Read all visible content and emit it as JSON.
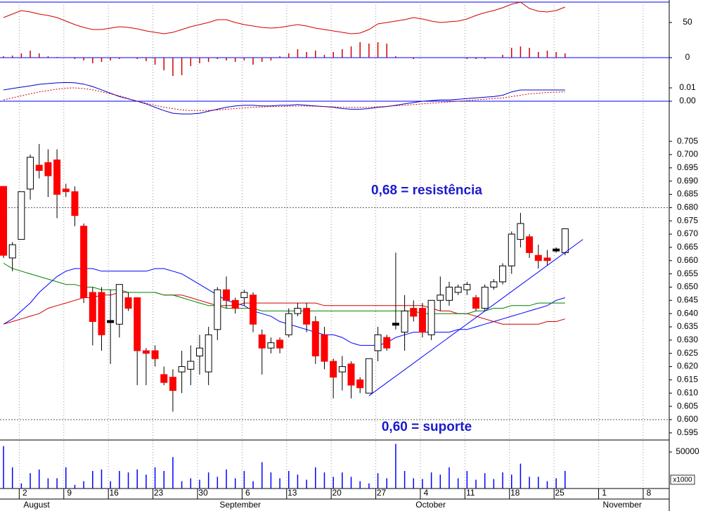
{
  "chart_data": [
    {
      "type": "line",
      "ylim": [
        -27,
        79
      ],
      "yticks": [
        0,
        50
      ],
      "zero_line": "#0000ff",
      "series": [
        {
          "color": "#d00000",
          "values": [
            57,
            62,
            67,
            65,
            62,
            60,
            57,
            52,
            47,
            43,
            40,
            40,
            42,
            44,
            43,
            41,
            38,
            36,
            34,
            36,
            40,
            44,
            47,
            50,
            54,
            54,
            50,
            47,
            45,
            43,
            42,
            43,
            45,
            47,
            45,
            42,
            40,
            38,
            36,
            34,
            35,
            40,
            48,
            50,
            52,
            54,
            57,
            55,
            52,
            50,
            51,
            52,
            55,
            60,
            64,
            67,
            71,
            76,
            79,
            70,
            66,
            65,
            67,
            72
          ]
        }
      ],
      "histogram": {
        "color": "#d00000",
        "values": [
          2,
          3,
          6,
          10,
          6,
          2,
          1,
          0,
          -2,
          -4,
          -8,
          -6,
          -4,
          -2,
          0,
          -2,
          -5,
          -10,
          -18,
          -26,
          -25,
          -12,
          -8,
          -6,
          -2,
          -4,
          -6,
          -4,
          -10,
          -6,
          -4,
          2,
          6,
          12,
          8,
          10,
          4,
          8,
          12,
          16,
          22,
          20,
          22,
          20,
          2,
          0,
          -2,
          0,
          0,
          0,
          0,
          0,
          -2,
          -2,
          -2,
          0,
          4,
          14,
          16,
          14,
          8,
          10,
          8,
          6
        ]
      }
    },
    {
      "type": "line",
      "ylim": [
        -0.0084,
        0.0184
      ],
      "yticks": [
        0.01,
        {
          "value": 0,
          "label": "0.00"
        }
      ],
      "zero_line": "#0000ff",
      "series": [
        {
          "color": "#0000cc",
          "values": [
            0.0084,
            0.0095,
            0.0105,
            0.0115,
            0.0126,
            0.0132,
            0.0137,
            0.014,
            0.0138,
            0.0128,
            0.011,
            0.0085,
            0.006,
            0.0035,
            0.0018,
            0,
            -0.002,
            -0.0045,
            -0.007,
            -0.009,
            -0.0095,
            -0.0095,
            -0.009,
            -0.0075,
            -0.006,
            -0.0045,
            -0.0035,
            -0.003,
            -0.003,
            -0.0035,
            -0.0035,
            -0.003,
            -0.003,
            -0.0025,
            -0.003,
            -0.0035,
            -0.004,
            -0.0045,
            -0.0055,
            -0.006,
            -0.006,
            -0.0055,
            -0.0045,
            -0.004,
            -0.003,
            -0.002,
            -0.001,
            0,
            0.0005,
            0.001,
            0.001,
            0.0015,
            0.002,
            0.0025,
            0.003,
            0.0035,
            0.0045,
            0.007,
            0.0084,
            0.0084,
            0.0084,
            0.0084,
            0.0084,
            0.0084
          ]
        },
        {
          "color": "#d00000",
          "line_style": "dotted",
          "values": [
            0.001,
            0.0025,
            0.004,
            0.0055,
            0.007,
            0.008,
            0.009,
            0.0098,
            0.01,
            0.0095,
            0.0085,
            0.007,
            0.0055,
            0.004,
            0.002,
            0,
            -0.0015,
            -0.003,
            -0.0045,
            -0.0055,
            -0.0065,
            -0.007,
            -0.007,
            -0.0068,
            -0.0065,
            -0.006,
            -0.0055,
            -0.005,
            -0.0045,
            -0.0043,
            -0.004,
            -0.004,
            -0.0038,
            -0.0036,
            -0.0036,
            -0.0038,
            -0.004,
            -0.0042,
            -0.0045,
            -0.0046,
            -0.0046,
            -0.0045,
            -0.0042,
            -0.0038,
            -0.0034,
            -0.003,
            -0.0025,
            -0.002,
            -0.0015,
            -0.001,
            -0.0005,
            0,
            0.0005,
            0.001,
            0.0015,
            0.002,
            0.0025,
            0.0035,
            0.0045,
            0.0055,
            0.006,
            0.0065,
            0.0068,
            0.007
          ]
        }
      ]
    },
    {
      "type": "candlestick",
      "ylim": [
        0.5923,
        0.7159
      ],
      "yticks": [
        0.595,
        {
          "value": 0.6,
          "label": "0.600"
        },
        0.605,
        {
          "value": 0.61,
          "label": "0.610"
        },
        0.615,
        {
          "value": 0.62,
          "label": "0.620"
        },
        0.625,
        {
          "value": 0.63,
          "label": "0.630"
        },
        0.635,
        {
          "value": 0.64,
          "label": "0.640"
        },
        0.645,
        {
          "value": 0.65,
          "label": "0.650"
        },
        0.655,
        {
          "value": 0.66,
          "label": "0.660"
        },
        0.665,
        {
          "value": 0.67,
          "label": "0.670"
        },
        0.675,
        {
          "value": 0.68,
          "label": "0.680"
        },
        0.685,
        {
          "value": 0.69,
          "label": "0.690"
        },
        0.695,
        {
          "value": 0.7,
          "label": "0.700"
        },
        0.705
      ],
      "up_color": "#ffffff",
      "down_color": "#ff0000",
      "doji_color": "#000000",
      "open": [
        0.688,
        0.661,
        0.668,
        0.687,
        0.696,
        0.697,
        0.698,
        0.687,
        0.686,
        0.673,
        0.648,
        0.648,
        0.637,
        0.636,
        0.646,
        0.646,
        0.626,
        0.626,
        0.617,
        0.616,
        0.618,
        0.619,
        0.624,
        0.618,
        0.634,
        0.649,
        0.645,
        0.646,
        0.647,
        0.632,
        0.627,
        0.63,
        0.632,
        0.64,
        0.642,
        0.637,
        0.632,
        0.622,
        0.618,
        0.621,
        0.615,
        0.61,
        0.626,
        0.631,
        0.636,
        0.633,
        0.642,
        0.642,
        0.632,
        0.645,
        0.645,
        0.648,
        0.649,
        0.646,
        0.642,
        0.65,
        0.652,
        0.658,
        0.668,
        0.669,
        0.662,
        0.661,
        0.664,
        0.663
      ],
      "high": [
        0.688,
        0.667,
        0.686,
        0.7,
        0.704,
        0.702,
        0.702,
        0.689,
        0.688,
        0.674,
        0.65,
        0.65,
        0.649,
        0.651,
        0.648,
        0.646,
        0.627,
        0.628,
        0.62,
        0.619,
        0.626,
        0.628,
        0.632,
        0.635,
        0.65,
        0.654,
        0.646,
        0.649,
        0.648,
        0.634,
        0.631,
        0.631,
        0.642,
        0.644,
        0.644,
        0.639,
        0.635,
        0.623,
        0.624,
        0.622,
        0.616,
        0.623,
        0.635,
        0.632,
        0.663,
        0.647,
        0.645,
        0.644,
        0.645,
        0.654,
        0.652,
        0.651,
        0.652,
        0.647,
        0.651,
        0.653,
        0.659,
        0.671,
        0.678,
        0.67,
        0.666,
        0.664,
        0.665,
        0.672
      ],
      "low": [
        0.661,
        0.656,
        0.668,
        0.683,
        0.691,
        0.684,
        0.676,
        0.684,
        0.673,
        0.644,
        0.628,
        0.626,
        0.621,
        0.631,
        0.641,
        0.613,
        0.613,
        0.62,
        0.613,
        0.603,
        0.61,
        0.613,
        0.617,
        0.613,
        0.63,
        0.642,
        0.64,
        0.643,
        0.633,
        0.617,
        0.625,
        0.625,
        0.631,
        0.639,
        0.633,
        0.621,
        0.619,
        0.608,
        0.611,
        0.608,
        0.61,
        0.61,
        0.622,
        0.626,
        0.634,
        0.626,
        0.637,
        0.631,
        0.63,
        0.641,
        0.643,
        0.647,
        0.647,
        0.641,
        0.641,
        0.649,
        0.651,
        0.655,
        0.665,
        0.661,
        0.657,
        0.658,
        0.663,
        0.662
      ],
      "close": [
        0.662,
        0.666,
        0.686,
        0.699,
        0.694,
        0.692,
        0.685,
        0.686,
        0.677,
        0.646,
        0.637,
        0.632,
        0.637,
        0.651,
        0.642,
        0.626,
        0.625,
        0.623,
        0.614,
        0.611,
        0.62,
        0.622,
        0.627,
        0.632,
        0.649,
        0.645,
        0.642,
        0.648,
        0.636,
        0.627,
        0.629,
        0.627,
        0.64,
        0.642,
        0.636,
        0.624,
        0.622,
        0.616,
        0.62,
        0.613,
        0.612,
        0.623,
        0.632,
        0.627,
        0.636,
        0.641,
        0.639,
        0.633,
        0.645,
        0.647,
        0.65,
        0.65,
        0.651,
        0.642,
        0.65,
        0.652,
        0.658,
        0.67,
        0.674,
        0.663,
        0.66,
        0.66,
        0.664,
        0.672
      ],
      "series": [
        {
          "color": "#0000ff",
          "values": [
            0.636,
            0.638,
            0.641,
            0.644,
            0.648,
            0.651,
            0.654,
            0.656,
            0.657,
            0.657,
            0.657,
            0.656,
            0.656,
            0.656,
            0.656,
            0.656,
            0.656,
            0.657,
            0.657,
            0.656,
            0.655,
            0.653,
            0.651,
            0.649,
            0.647,
            0.645,
            0.644,
            0.643,
            0.641,
            0.64,
            0.639,
            0.637,
            0.636,
            0.635,
            0.634,
            0.633,
            0.632,
            0.632,
            0.631,
            0.629,
            0.628,
            0.628,
            0.628,
            0.629,
            0.631,
            0.632,
            0.633,
            0.633,
            0.633,
            0.633,
            0.633,
            0.634,
            0.634,
            0.635,
            0.636,
            0.637,
            0.638,
            0.639,
            0.64,
            0.641,
            0.642,
            0.643,
            0.645,
            0.646
          ]
        },
        {
          "color": "#d00000",
          "values": [
            0.636,
            0.637,
            0.638,
            0.639,
            0.64,
            0.642,
            0.643,
            0.644,
            0.645,
            0.646,
            0.646,
            0.647,
            0.647,
            0.648,
            0.648,
            0.648,
            0.648,
            0.648,
            0.647,
            0.647,
            0.647,
            0.646,
            0.645,
            0.644,
            0.643,
            0.643,
            0.643,
            0.644,
            0.644,
            0.644,
            0.644,
            0.644,
            0.644,
            0.644,
            0.644,
            0.644,
            0.643,
            0.643,
            0.643,
            0.643,
            0.643,
            0.643,
            0.643,
            0.643,
            0.643,
            0.643,
            0.643,
            0.643,
            0.642,
            0.641,
            0.641,
            0.64,
            0.64,
            0.639,
            0.638,
            0.637,
            0.636,
            0.636,
            0.636,
            0.636,
            0.636,
            0.637,
            0.637,
            0.638
          ]
        },
        {
          "color": "#008000",
          "values": [
            0.659,
            0.657,
            0.656,
            0.655,
            0.654,
            0.653,
            0.652,
            0.651,
            0.651,
            0.65,
            0.65,
            0.649,
            0.649,
            0.649,
            0.648,
            0.648,
            0.648,
            0.648,
            0.647,
            0.647,
            0.646,
            0.645,
            0.644,
            0.643,
            0.643,
            0.642,
            0.642,
            0.642,
            0.642,
            0.641,
            0.641,
            0.641,
            0.641,
            0.641,
            0.641,
            0.641,
            0.641,
            0.641,
            0.641,
            0.641,
            0.641,
            0.641,
            0.641,
            0.641,
            0.641,
            0.641,
            0.641,
            0.64,
            0.64,
            0.64,
            0.64,
            0.64,
            0.64,
            0.641,
            0.641,
            0.642,
            0.642,
            0.643,
            0.643,
            0.643,
            0.644,
            0.644,
            0.644,
            0.644
          ]
        }
      ],
      "reference_lines": [
        {
          "value": 0.68,
          "label": "0,68 = resistência"
        },
        {
          "value": 0.6,
          "label": "0,60 = suporte"
        }
      ],
      "trendline": {
        "color": "#0000ff",
        "x": [
          41,
          65
        ],
        "values": [
          0.609,
          0.668
        ]
      }
    },
    {
      "type": "bar",
      "color": "#0000ff",
      "ylim": [
        0,
        66346
      ],
      "yticks": [
        50000
      ],
      "unit_label": "x1000",
      "categories": [
        null,
        null,
        "2",
        null,
        null,
        null,
        null,
        "9",
        null,
        null,
        null,
        null,
        "16",
        null,
        null,
        null,
        null,
        "23",
        null,
        null,
        null,
        null,
        "30",
        null,
        null,
        null,
        null,
        "6",
        null,
        null,
        null,
        null,
        "13",
        null,
        null,
        null,
        null,
        "20",
        null,
        null,
        null,
        null,
        "27",
        null,
        null,
        null,
        null,
        "4",
        null,
        null,
        null,
        null,
        "11",
        null,
        null,
        null,
        null,
        "18",
        null,
        null,
        null,
        null,
        "25",
        null,
        null,
        null,
        null,
        "1",
        null,
        null,
        null,
        null,
        "8"
      ],
      "months": [
        null,
        null,
        "August",
        null,
        null,
        null,
        null,
        null,
        null,
        null,
        null,
        null,
        null,
        null,
        null,
        null,
        null,
        null,
        null,
        null,
        null,
        null,
        null,
        null,
        "September",
        null,
        null,
        null,
        null,
        null,
        null,
        null,
        null,
        null,
        null,
        null,
        null,
        null,
        null,
        null,
        null,
        null,
        null,
        null,
        null,
        null,
        "October",
        null,
        null,
        null,
        null,
        null,
        null,
        null,
        null,
        null,
        null,
        null,
        null,
        null,
        null,
        null,
        null,
        null,
        null,
        null,
        null,
        "November",
        null,
        null,
        null,
        null,
        null
      ],
      "values": [
        58000,
        29000,
        7000,
        21000,
        26000,
        14000,
        14000,
        29000,
        5000,
        10000,
        24000,
        26000,
        10000,
        24000,
        22000,
        26000,
        19000,
        29000,
        24000,
        43000,
        10000,
        14000,
        12000,
        22000,
        16000,
        26000,
        14000,
        24000,
        10000,
        36000,
        22000,
        14000,
        24000,
        19000,
        12000,
        29000,
        22000,
        16000,
        22000,
        16000,
        10000,
        7000,
        21000,
        14000,
        61000,
        24000,
        14000,
        13000,
        22000,
        19000,
        29000,
        14000,
        24000,
        12000,
        21000,
        13000,
        22000,
        19000,
        34000,
        16000,
        16000,
        10000,
        14000,
        24000,
        null,
        null,
        null,
        null,
        null,
        null,
        null,
        null,
        null
      ]
    }
  ]
}
